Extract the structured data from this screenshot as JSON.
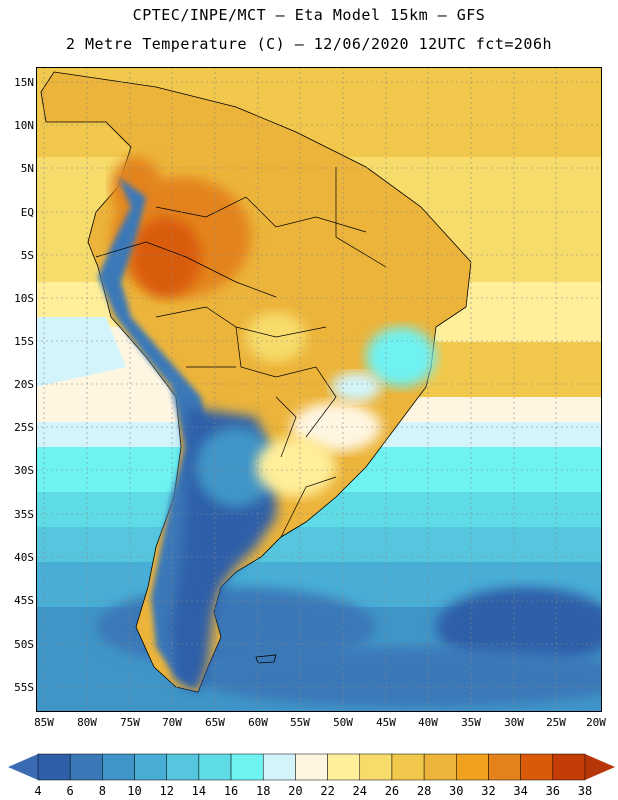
{
  "header": {
    "line1": "CPTEC/INPE/MCT –  Eta Model 15km – GFS",
    "line2": "2 Metre Temperature (C) – 12/06/2020 12UTC fct=206h"
  },
  "map": {
    "lat_labels": [
      "15N",
      "10N",
      "5N",
      "EQ",
      "5S",
      "10S",
      "15S",
      "20S",
      "25S",
      "30S",
      "35S",
      "40S",
      "45S",
      "50S",
      "55S"
    ],
    "lon_labels": [
      "85W",
      "80W",
      "75W",
      "70W",
      "65W",
      "60W",
      "55W",
      "50W",
      "45W",
      "40W",
      "35W",
      "30W",
      "25W",
      "20W"
    ]
  },
  "colorbar": {
    "labels": [
      "4",
      "6",
      "8",
      "10",
      "12",
      "14",
      "16",
      "18",
      "20",
      "22",
      "24",
      "26",
      "28",
      "30",
      "32",
      "34",
      "36",
      "38"
    ],
    "colors": [
      "#2e5fa8",
      "#3a78b8",
      "#3f95c8",
      "#48aed6",
      "#55c6de",
      "#5fdbe6",
      "#6ff2f2",
      "#d3f4fa",
      "#fff6e2",
      "#ffee9a",
      "#f7dc6c",
      "#f1c84c",
      "#ecb43a",
      "#f0a21e",
      "#e4831c",
      "#d95b0a",
      "#c43c08"
    ],
    "end_low_color": "#3a6bb3",
    "end_high_color": "#b6360a"
  }
}
